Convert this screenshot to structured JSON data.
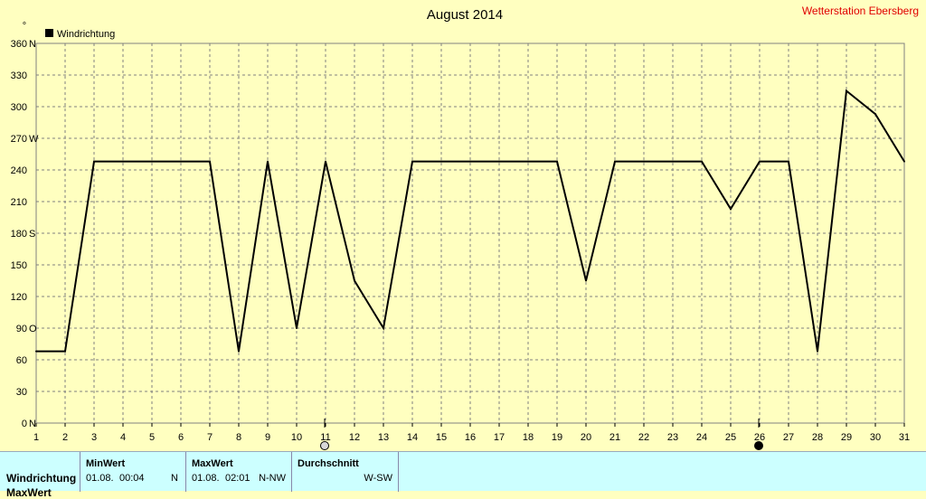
{
  "chart_data": {
    "type": "line",
    "title": "August 2014",
    "station_label": "Wetterstation Ebersberg",
    "y_unit_symbol": "°",
    "legend_entry": "Windrichtung",
    "series": [
      {
        "name": "Windrichtung",
        "color": "#000000",
        "x": [
          1,
          2,
          3,
          4,
          5,
          6,
          7,
          8,
          9,
          10,
          11,
          12,
          13,
          14,
          15,
          16,
          17,
          18,
          19,
          20,
          21,
          22,
          23,
          24,
          25,
          26,
          27,
          28,
          29,
          30,
          31
        ],
        "values": [
          68,
          68,
          248,
          248,
          248,
          248,
          248,
          68,
          248,
          90,
          248,
          135,
          90,
          248,
          248,
          248,
          248,
          248,
          248,
          135,
          248,
          248,
          248,
          248,
          203,
          248,
          248,
          68,
          315,
          293,
          248
        ]
      }
    ],
    "xlim": [
      1,
      31
    ],
    "ylim": [
      0,
      360
    ],
    "x_ticks": [
      "1",
      "2",
      "3",
      "4",
      "5",
      "6",
      "7",
      "8",
      "9",
      "10",
      "11",
      "12",
      "13",
      "14",
      "15",
      "16",
      "17",
      "18",
      "19",
      "20",
      "21",
      "22",
      "23",
      "24",
      "25",
      "26",
      "27",
      "28",
      "29",
      "30",
      "31"
    ],
    "y_ticks": [
      {
        "value": 0,
        "label": "0",
        "dir": "N"
      },
      {
        "value": 30,
        "label": "30",
        "dir": ""
      },
      {
        "value": 60,
        "label": "60",
        "dir": ""
      },
      {
        "value": 90,
        "label": "90",
        "dir": "O"
      },
      {
        "value": 120,
        "label": "120",
        "dir": ""
      },
      {
        "value": 150,
        "label": "150",
        "dir": ""
      },
      {
        "value": 180,
        "label": "180",
        "dir": "S"
      },
      {
        "value": 210,
        "label": "210",
        "dir": ""
      },
      {
        "value": 240,
        "label": "240",
        "dir": ""
      },
      {
        "value": 270,
        "label": "270",
        "dir": "W"
      },
      {
        "value": 300,
        "label": "300",
        "dir": ""
      },
      {
        "value": 330,
        "label": "330",
        "dir": ""
      },
      {
        "value": 360,
        "label": "360",
        "dir": "N"
      }
    ],
    "grid": true,
    "legend_position": "top-left",
    "moon_phases": [
      {
        "day": 11,
        "phase": "full"
      },
      {
        "day": 26,
        "phase": "new"
      }
    ]
  },
  "stats": {
    "row_label": "Windrichtung",
    "row_label_2": "MaxWert",
    "min": {
      "header": "MinWert",
      "date": "01.08.",
      "time": "00:04",
      "dir": "N"
    },
    "max": {
      "header": "MaxWert",
      "date": "01.08.",
      "time": "02:01",
      "dir": "N-NW"
    },
    "avg": {
      "header": "Durchschnitt",
      "dir": "W-SW"
    }
  }
}
